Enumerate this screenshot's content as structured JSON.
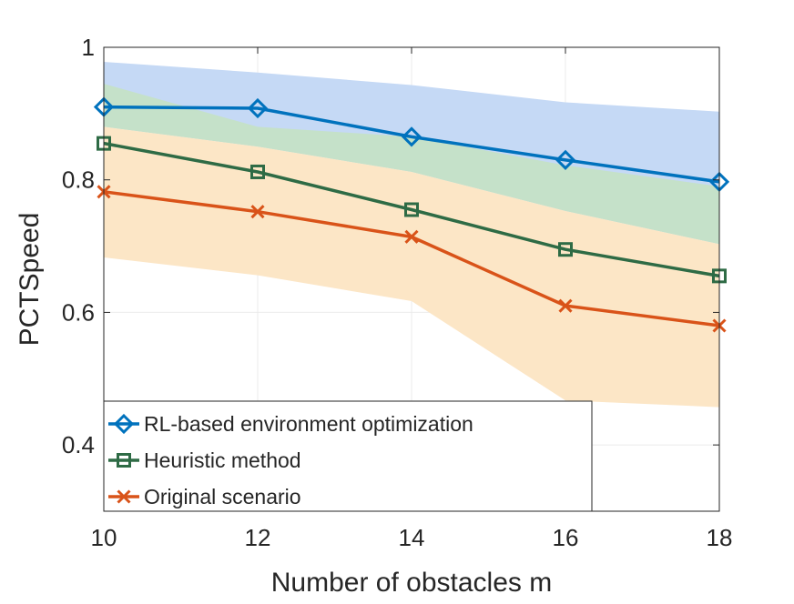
{
  "chart_data": {
    "type": "line",
    "title": "",
    "xlabel": "Number of obstacles m",
    "ylabel": "PCTSpeed",
    "xlim": [
      10,
      18
    ],
    "ylim": [
      0.3,
      1.0
    ],
    "x": [
      10,
      12,
      14,
      16,
      18
    ],
    "xticks": [
      10,
      12,
      14,
      16,
      18
    ],
    "xtick_labels": [
      "10",
      "12",
      "14",
      "16",
      "18"
    ],
    "yticks": [
      0.4,
      0.6,
      0.8,
      1.0
    ],
    "ytick_labels": [
      "0.4",
      "0.6",
      "0.8",
      "1"
    ],
    "grid": true,
    "legend_location": "bottom-left",
    "series": [
      {
        "name": "RL-based environment optimization",
        "marker": "diamond",
        "color": "#0072BD",
        "band_color": "#C5D9F5",
        "values": [
          0.91,
          0.908,
          0.865,
          0.83,
          0.797
        ],
        "upper": [
          0.978,
          0.962,
          0.943,
          0.917,
          0.903
        ],
        "lower": [
          0.88,
          0.85,
          0.812,
          0.753,
          0.703
        ]
      },
      {
        "name": "Heuristic method",
        "marker": "square",
        "color": "#2E6B45",
        "band_color": "#C5E1C9",
        "values": [
          0.855,
          0.812,
          0.755,
          0.695,
          0.655
        ],
        "upper": [
          0.945,
          0.88,
          0.865,
          0.822,
          0.79
        ],
        "lower": [
          0.88,
          0.85,
          0.812,
          0.753,
          0.703
        ]
      },
      {
        "name": "Original scenario",
        "marker": "x",
        "color": "#D95319",
        "band_color": "#FCE6C6",
        "values": [
          0.782,
          0.752,
          0.714,
          0.61,
          0.58
        ],
        "upper": [
          0.88,
          0.85,
          0.812,
          0.753,
          0.703
        ],
        "lower": [
          0.683,
          0.656,
          0.617,
          0.467,
          0.457
        ]
      }
    ]
  }
}
